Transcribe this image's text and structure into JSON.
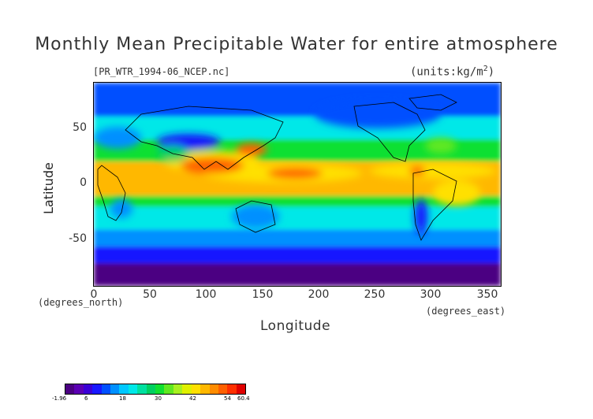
{
  "title": "Monthly Mean Precipitable Water for entire atmosphere",
  "filename": "[PR_WTR_1994-06_NCEP.nc]",
  "units": "(units:kg/m^2)",
  "axes": {
    "y_label": "Latitude",
    "y_units": "(degrees_north)",
    "y_ticks": [
      "50",
      "0",
      "-50"
    ],
    "x_label": "Longitude",
    "x_units": "(degrees_east)",
    "x_ticks": [
      "0",
      "50",
      "100",
      "150",
      "200",
      "250",
      "300",
      "350"
    ]
  },
  "colorbar": {
    "ticks": [
      "-1.96",
      "6",
      "18",
      "30",
      "42",
      "54",
      "60.4"
    ],
    "colors": [
      "#4b0082",
      "#5b00b4",
      "#3a00d6",
      "#1818ff",
      "#0050ff",
      "#0090ff",
      "#00c8ff",
      "#00e8e8",
      "#00e0a0",
      "#00d060",
      "#10e030",
      "#60e820",
      "#a8f020",
      "#e0f000",
      "#ffe000",
      "#ffb800",
      "#ff8c00",
      "#ff6000",
      "#ff3000",
      "#e00000"
    ]
  },
  "chart_data": {
    "type": "heatmap",
    "title": "Monthly Mean Precipitable Water for entire atmosphere",
    "subtitle": "[PR_WTR_1994-06_NCEP.nc]",
    "units": "(units:kg/m^2)",
    "xlabel": "Longitude",
    "ylabel": "Latitude",
    "xlim": [
      0,
      357.5
    ],
    "ylim": [
      -90,
      90
    ],
    "color_range": [
      -1.96,
      60.4
    ],
    "value_bands": [
      {
        "lat_range": [
          -90,
          -70
        ],
        "approx_value": 0
      },
      {
        "lat_range": [
          -70,
          -55
        ],
        "approx_value": 8
      },
      {
        "lat_range": [
          -55,
          -40
        ],
        "approx_value": 14
      },
      {
        "lat_range": [
          -40,
          -20
        ],
        "approx_value": 22
      },
      {
        "lat_range": [
          -20,
          -10
        ],
        "approx_value": 32
      },
      {
        "lat_range": [
          -10,
          20
        ],
        "approx_value": 45
      },
      {
        "lat_range": [
          20,
          40
        ],
        "approx_value": 30
      },
      {
        "lat_range": [
          40,
          60
        ],
        "approx_value": 20
      },
      {
        "lat_range": [
          60,
          90
        ],
        "approx_value": 12
      }
    ]
  }
}
